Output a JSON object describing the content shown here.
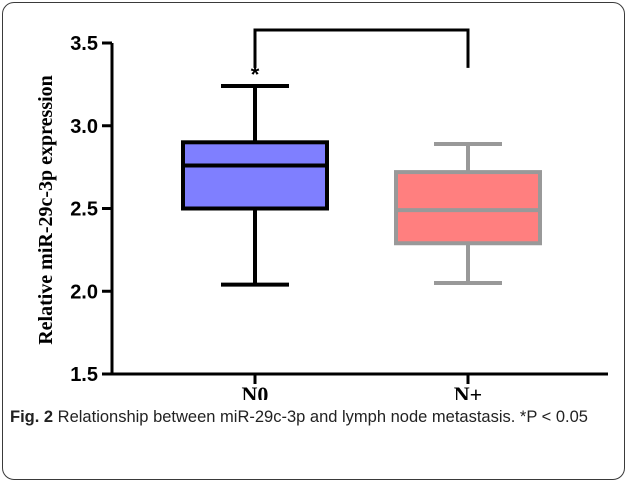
{
  "chart_data": {
    "type": "box",
    "ylabel": "Relative miR-29c-3p expression",
    "ylim": [
      1.5,
      3.5
    ],
    "yticks": [
      "1.5",
      "2.0",
      "2.5",
      "3.0",
      "3.5"
    ],
    "categories": [
      "N0",
      "N+"
    ],
    "boxes": [
      {
        "category": "N0",
        "min": 2.04,
        "q1": 2.5,
        "median": 2.76,
        "q3": 2.9,
        "max": 3.24,
        "fill": "#7f7fff",
        "stroke": "#000000"
      },
      {
        "category": "N+",
        "min": 2.05,
        "q1": 2.29,
        "median": 2.49,
        "q3": 2.72,
        "max": 2.89,
        "fill": "#ff7f7f",
        "stroke": "#999999"
      }
    ],
    "annotation": "*",
    "significance_bracket": {
      "from": "N0",
      "to": "N+",
      "y": 3.5
    }
  },
  "caption": {
    "label": "Fig. 2",
    "text": " Relationship between miR-29c-3p and lymph node metastasis. *P < 0.05"
  }
}
